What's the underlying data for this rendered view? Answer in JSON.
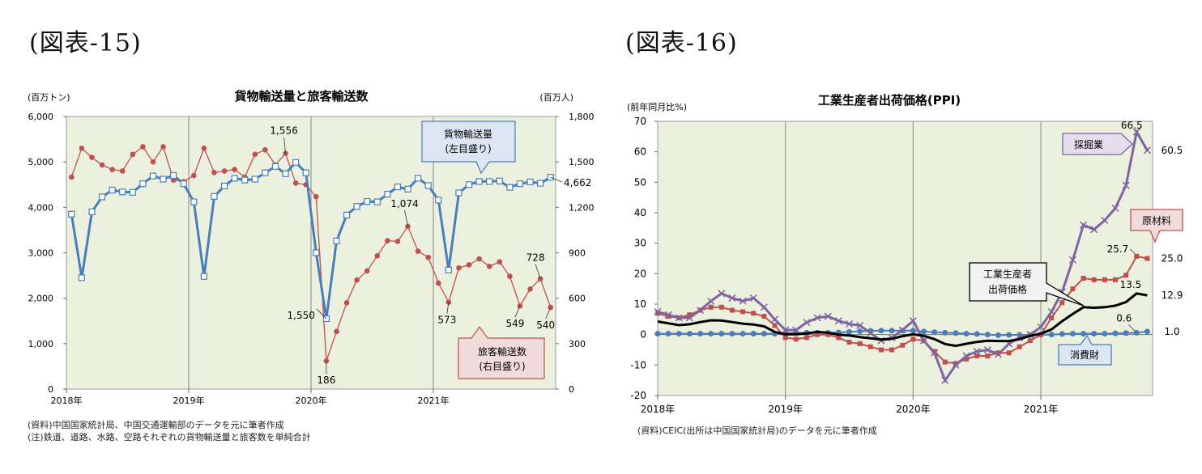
{
  "left": {
    "figure_label": "(図表-15)",
    "notes": [
      "(資料)中国国家統計局、中国交通運輸部のデータを元に筆者作成",
      "(注)鉄道、道路、水路、空路それぞれの貨物輸送量と旅客数を単純合計"
    ],
    "callouts": {
      "freight": [
        "貨物輸送量",
        "(左目盛り)"
      ],
      "passenger": [
        "旅客輸送数",
        "(右目盛り)"
      ]
    },
    "colors": {
      "freight": "#4a7ebb",
      "passenger": "#c0504d",
      "plot_bg": "#ebf1de",
      "callout_blue_bg": "#dce6f2",
      "callout_red_bg": "#f2dcdb"
    }
  },
  "right": {
    "figure_label": "(図表-16)",
    "notes": [
      "(資料)CEIC(出所は中国国家統計局)のデータを元に筆者作成"
    ],
    "callouts": {
      "mining": [
        "採掘業"
      ],
      "raw": [
        "原材料"
      ],
      "ppi": [
        "工業生産者",
        "出荷価格"
      ],
      "consumer": [
        "消費財"
      ]
    },
    "colors": {
      "mining": "#8064a2",
      "raw": "#c0504d",
      "ppi": "#000000",
      "consumer": "#4a7ebb",
      "plot_bg": "#ebf1de",
      "mining_bg": "#e4dfec",
      "raw_bg": "#f2dcdb",
      "ppi_bg": "#f2f2f2",
      "consumer_bg": "#dce6f2"
    }
  },
  "chart_data": [
    {
      "type": "line",
      "title": "貨物輸送量と旅客輸送数",
      "y_unit_left": "(百万トン)",
      "y_unit_right": "(百万人)",
      "x_ticks": [
        "2018年",
        "2019年",
        "2020年",
        "2021年"
      ],
      "ylim_left": [
        0,
        6000
      ],
      "ylim_right": [
        0,
        1800
      ],
      "yticks_left": [
        "0",
        "1,000",
        "2,000",
        "3,000",
        "4,000",
        "5,000",
        "6,000"
      ],
      "yticks_right": [
        "0",
        "300",
        "600",
        "900",
        "1,200",
        "1,500",
        "1,800"
      ],
      "series": [
        {
          "name": "貨物輸送量",
          "axis": "left",
          "values": [
            3850,
            2450,
            3900,
            4230,
            4380,
            4340,
            4330,
            4520,
            4690,
            4620,
            4700,
            4520,
            4120,
            2480,
            4240,
            4470,
            4640,
            4600,
            4620,
            4760,
            4900,
            4740,
            4990,
            4760,
            3000,
            1550,
            3260,
            3830,
            4020,
            4130,
            4120,
            4290,
            4450,
            4400,
            4640,
            4480,
            4160,
            2620,
            4320,
            4500,
            4570,
            4570,
            4580,
            4440,
            4520,
            4560,
            4530,
            4662
          ]
        },
        {
          "name": "旅客輸送数",
          "axis": "right",
          "values": [
            1400,
            1590,
            1530,
            1480,
            1450,
            1440,
            1550,
            1600,
            1500,
            1600,
            1380,
            1370,
            1410,
            1590,
            1430,
            1440,
            1450,
            1400,
            1550,
            1580,
            1480,
            1556,
            1360,
            1350,
            1270,
            186,
            380,
            570,
            720,
            780,
            880,
            980,
            975,
            1074,
            910,
            870,
            700,
            573,
            800,
            820,
            860,
            810,
            840,
            745,
            549,
            660,
            728,
            540
          ]
        }
      ],
      "annotations": [
        "1,556",
        "1,550",
        "186",
        "1,074",
        "573",
        "549",
        "728",
        "540",
        "4,662"
      ]
    },
    {
      "type": "line",
      "title": "工業生産者出荷価格(PPI)",
      "y_unit": "(前年同月比%)",
      "x_ticks": [
        "2018年",
        "2019年",
        "2020年",
        "2021年"
      ],
      "ylim": [
        -20,
        70
      ],
      "yticks": [
        "-20",
        "-10",
        "0",
        "10",
        "20",
        "30",
        "40",
        "50",
        "60",
        "70"
      ],
      "series": [
        {
          "name": "採掘業",
          "values": [
            7.5,
            6.5,
            5.5,
            5.5,
            8,
            11,
            13.5,
            12,
            11,
            12,
            9,
            5,
            1.5,
            1.5,
            4,
            5.5,
            6,
            4.5,
            3.5,
            3,
            0.5,
            -2,
            -1,
            1.5,
            4.5,
            -2,
            -6,
            -15,
            -10,
            -7,
            -5.5,
            -5,
            -6.5,
            -3,
            -1,
            0,
            2.5,
            7.5,
            14,
            24.5,
            36,
            34.5,
            37.5,
            41.5,
            49,
            66.5,
            60.5
          ]
        },
        {
          "name": "原材料",
          "values": [
            7,
            6,
            5.5,
            6.5,
            8,
            9,
            9,
            8,
            7.5,
            7,
            6,
            3,
            -1,
            -1.5,
            -1,
            0,
            0,
            -1,
            -2.5,
            -3,
            -4,
            -5,
            -5,
            -3.5,
            -1.5,
            -2,
            -5.5,
            -9,
            -9.5,
            -8,
            -7,
            -7,
            -6,
            -6,
            -4,
            -2,
            0,
            5.5,
            10.5,
            15,
            18.5,
            18,
            18,
            18,
            19.5,
            25.7,
            25.0
          ]
        },
        {
          "name": "工業生産者出荷価格",
          "values": [
            4.3,
            3.7,
            3.1,
            3.4,
            4.1,
            4.7,
            4.6,
            4.1,
            3.6,
            3.3,
            2.7,
            0.9,
            0.1,
            0.1,
            0.4,
            0.9,
            0.6,
            0,
            -0.3,
            -0.8,
            -1.2,
            -1.6,
            -1.4,
            -0.5,
            0.1,
            -0.4,
            -1.5,
            -3.1,
            -3.7,
            -3.0,
            -2.4,
            -2.0,
            -2.1,
            -2.1,
            -1.5,
            -0.4,
            0.3,
            1.7,
            4.4,
            6.8,
            9.0,
            8.8,
            9.0,
            9.5,
            10.7,
            13.5,
            12.9
          ]
        },
        {
          "name": "消費財",
          "values": [
            0.3,
            0.3,
            0.3,
            0.3,
            0.3,
            0.3,
            0.3,
            0.3,
            0.3,
            0.3,
            0.3,
            0.3,
            0.5,
            0.5,
            0.6,
            0.6,
            0.6,
            0.7,
            0.9,
            1.1,
            1.2,
            1.3,
            1.3,
            1.3,
            1.3,
            1.0,
            0.8,
            0.6,
            0.5,
            0.3,
            0.2,
            0,
            -0.2,
            -0.1,
            -0.1,
            -0.1,
            0,
            0,
            0.2,
            0.3,
            0.3,
            0.3,
            0.3,
            0.4,
            0.5,
            0.6,
            1.0
          ]
        }
      ],
      "annotations": [
        "66.5",
        "60.5",
        "25.7",
        "25.0",
        "13.5",
        "12.9",
        "0.6",
        "1.0"
      ]
    }
  ]
}
